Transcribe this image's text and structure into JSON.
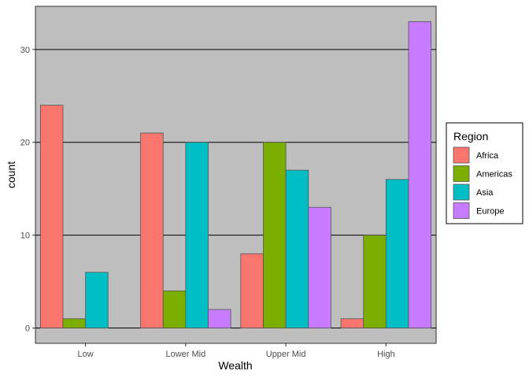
{
  "chart_data": {
    "type": "bar",
    "xlabel": "Wealth",
    "ylabel": "count",
    "categories": [
      "Low",
      "Lower Mid",
      "Upper Mid",
      "High"
    ],
    "series": [
      {
        "name": "Africa",
        "color": "#F8766D",
        "values": [
          24,
          21,
          8,
          1
        ]
      },
      {
        "name": "Americas",
        "color": "#7CAE00",
        "values": [
          1,
          4,
          20,
          10
        ]
      },
      {
        "name": "Asia",
        "color": "#00BFC4",
        "values": [
          6,
          20,
          17,
          16
        ]
      },
      {
        "name": "Europe",
        "color": "#C77CFF",
        "values": [
          0,
          2,
          13,
          33
        ]
      }
    ],
    "ylim": [
      -1.65,
      34.65
    ],
    "yticks": [
      0,
      10,
      20,
      30
    ],
    "grid": true,
    "panel_background": "#BEBEBE",
    "legend": {
      "title": "Region",
      "placement": "right"
    }
  }
}
